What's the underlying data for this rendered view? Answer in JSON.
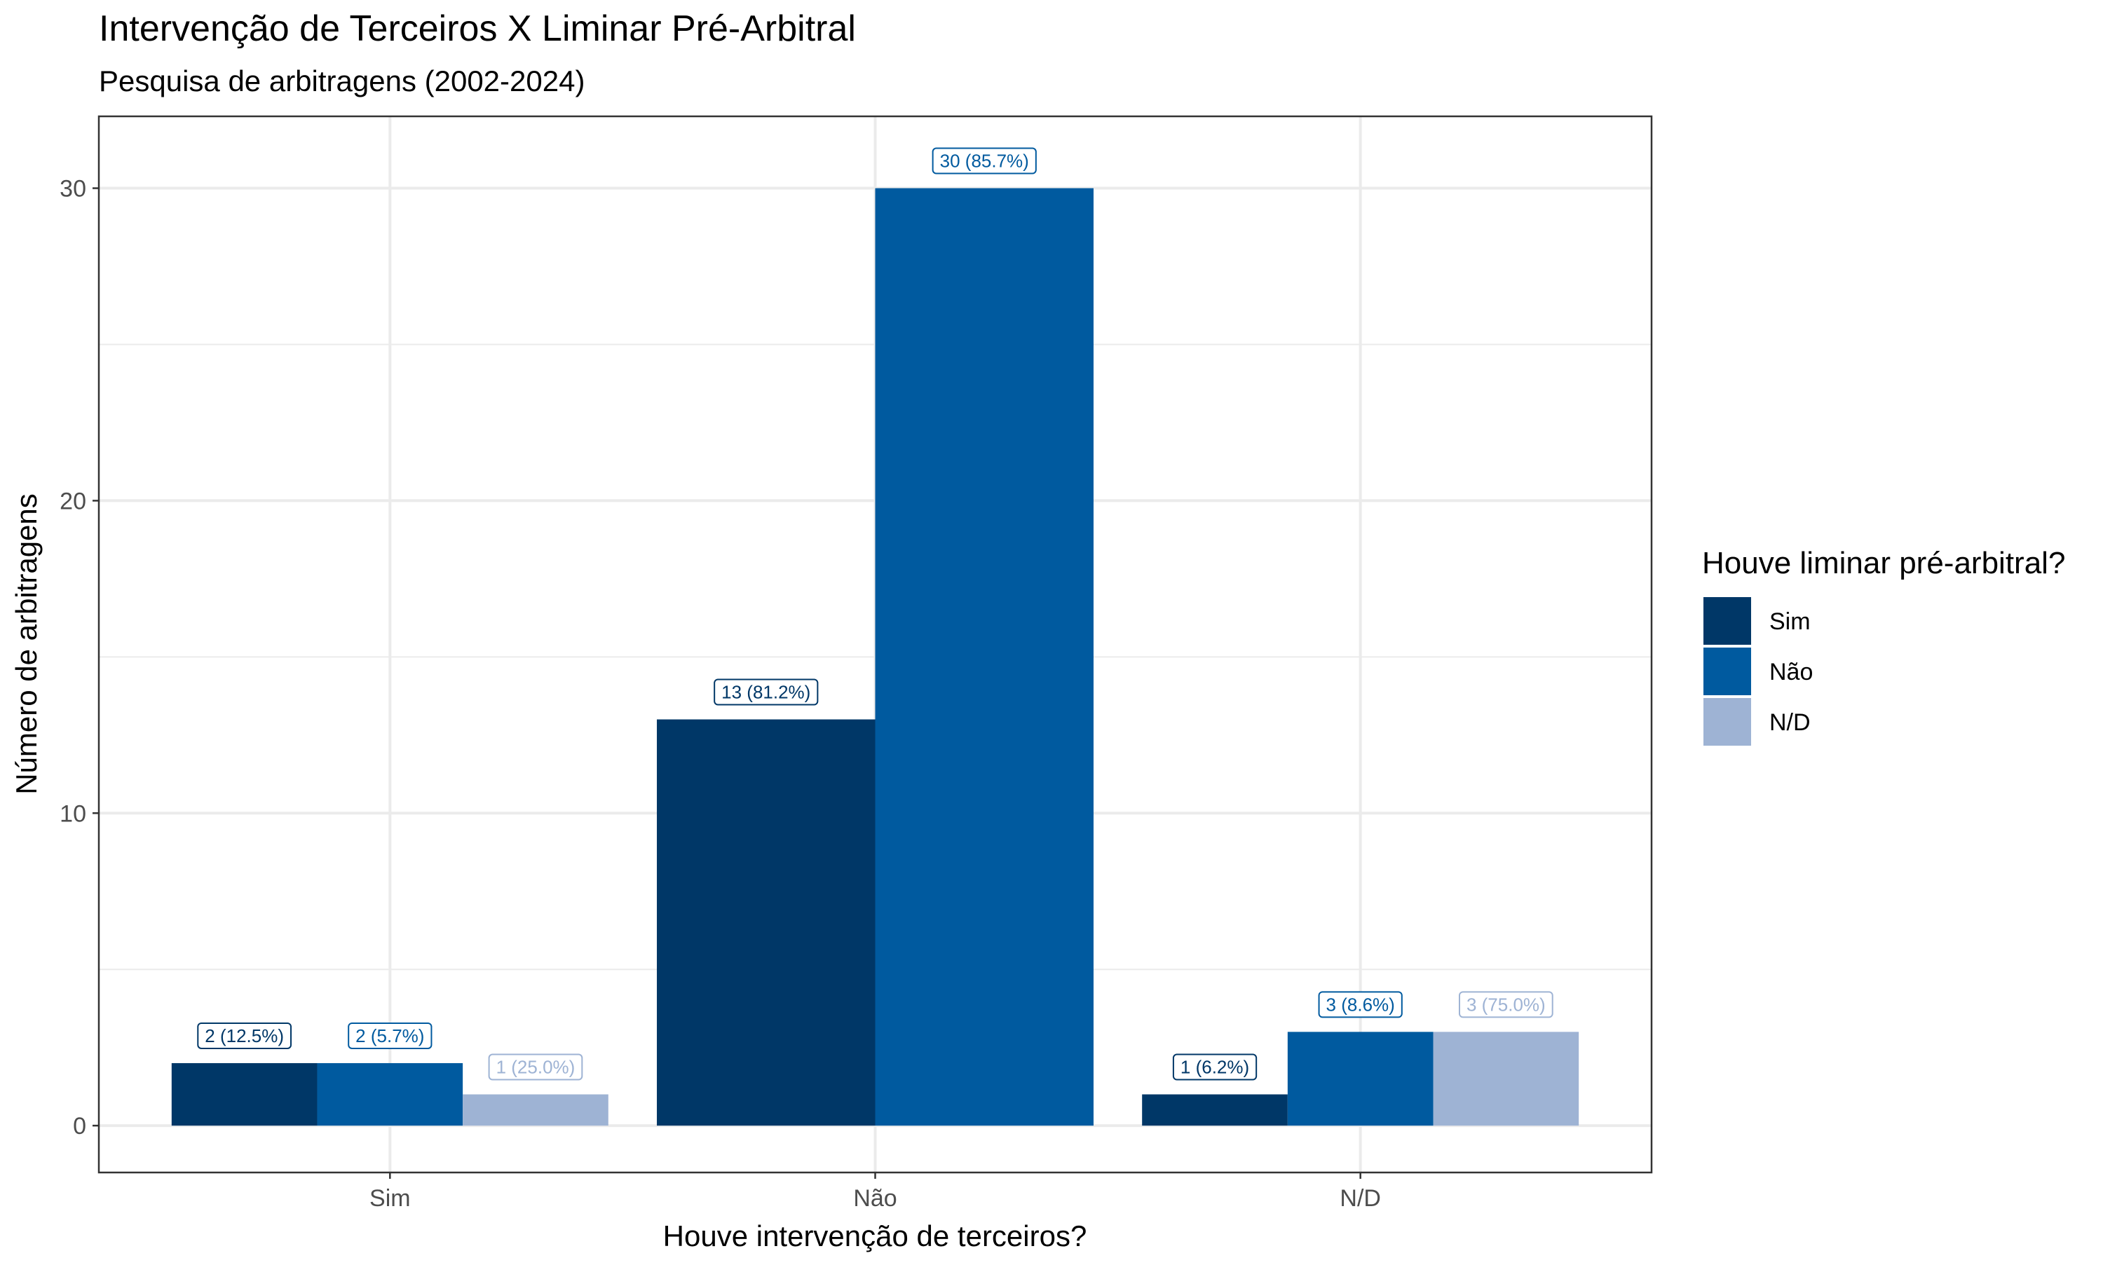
{
  "chart_data": {
    "type": "bar",
    "title": "Intervenção de Terceiros X Liminar Pré-Arbitral",
    "subtitle": "Pesquisa de arbitragens (2002-2024)",
    "xlabel": "Houve intervenção de terceiros?",
    "ylabel": "Número de arbitragens",
    "categories": [
      "Sim",
      "Não",
      "N/D"
    ],
    "ylim": [
      -1.5,
      32.3
    ],
    "yticks": [
      0,
      10,
      20,
      30
    ],
    "grid": true,
    "legend": {
      "title": "Houve liminar pré-arbitral?",
      "position": "right"
    },
    "series": [
      {
        "name": "Sim",
        "color": "#003767",
        "values": [
          2,
          13,
          1
        ],
        "labels": [
          "2 (12.5%)",
          "13 (81.2%)",
          "1 (6.2%)"
        ]
      },
      {
        "name": "Não",
        "color": "#005A9F",
        "values": [
          2,
          30,
          3
        ],
        "labels": [
          "2 (5.7%)",
          "30 (85.7%)",
          "3 (8.6%)"
        ]
      },
      {
        "name": "N/D",
        "color": "#9EB3D4",
        "values": [
          1,
          null,
          3
        ],
        "labels": [
          "1 (25.0%)",
          null,
          "3 (75.0%)"
        ]
      }
    ]
  }
}
